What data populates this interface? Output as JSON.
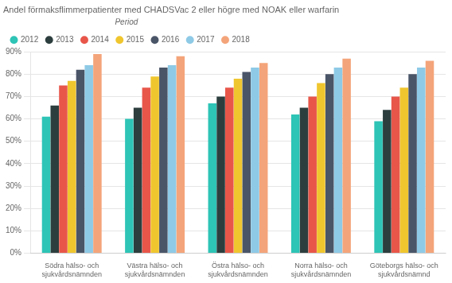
{
  "chart_data": {
    "type": "bar",
    "title": "Andel förmaksflimmerpatienter med CHADSVac 2 eller högre med NOAK eller warfarin",
    "legend_title": "Period",
    "categories": [
      "Södra hälso- och\nsjukvårdsnämnden",
      "Västra hälso- och\nsjukvårdsnämnden",
      "Östra hälso- och\nsjukvårdsnämnden",
      "Norra hälso- och\nsjukvårdsnämnden",
      "Göteborgs hälso- och\nsjukvårdsnämnd"
    ],
    "series": [
      {
        "name": "2012",
        "color": "#2ec4b6",
        "values": [
          61,
          60,
          67,
          62,
          59
        ]
      },
      {
        "name": "2013",
        "color": "#2d3e3e",
        "values": [
          66,
          65,
          70,
          65,
          64
        ]
      },
      {
        "name": "2014",
        "color": "#e8564a",
        "values": [
          75,
          74,
          74,
          70,
          70
        ]
      },
      {
        "name": "2015",
        "color": "#f0c62f",
        "values": [
          77,
          79,
          78,
          76,
          74
        ]
      },
      {
        "name": "2016",
        "color": "#4a5568",
        "values": [
          82,
          83,
          81,
          80,
          80
        ]
      },
      {
        "name": "2017",
        "color": "#8ecae6",
        "values": [
          84,
          84,
          83,
          83,
          83
        ]
      },
      {
        "name": "2018",
        "color": "#f4a47a",
        "values": [
          89,
          88,
          85,
          87,
          86
        ]
      }
    ],
    "ylim": [
      0,
      90
    ],
    "yticks": [
      {
        "value": 0,
        "label": "0%"
      },
      {
        "value": 10,
        "label": "10%"
      },
      {
        "value": 20,
        "label": "20%"
      },
      {
        "value": 30,
        "label": "30%"
      },
      {
        "value": 40,
        "label": "40%"
      },
      {
        "value": 50,
        "label": "50%"
      },
      {
        "value": 60,
        "label": "60%"
      },
      {
        "value": 70,
        "label": "70%"
      },
      {
        "value": 80,
        "label": "80%"
      },
      {
        "value": 90,
        "label": "90%"
      }
    ],
    "grid": true,
    "legend": "top left"
  }
}
